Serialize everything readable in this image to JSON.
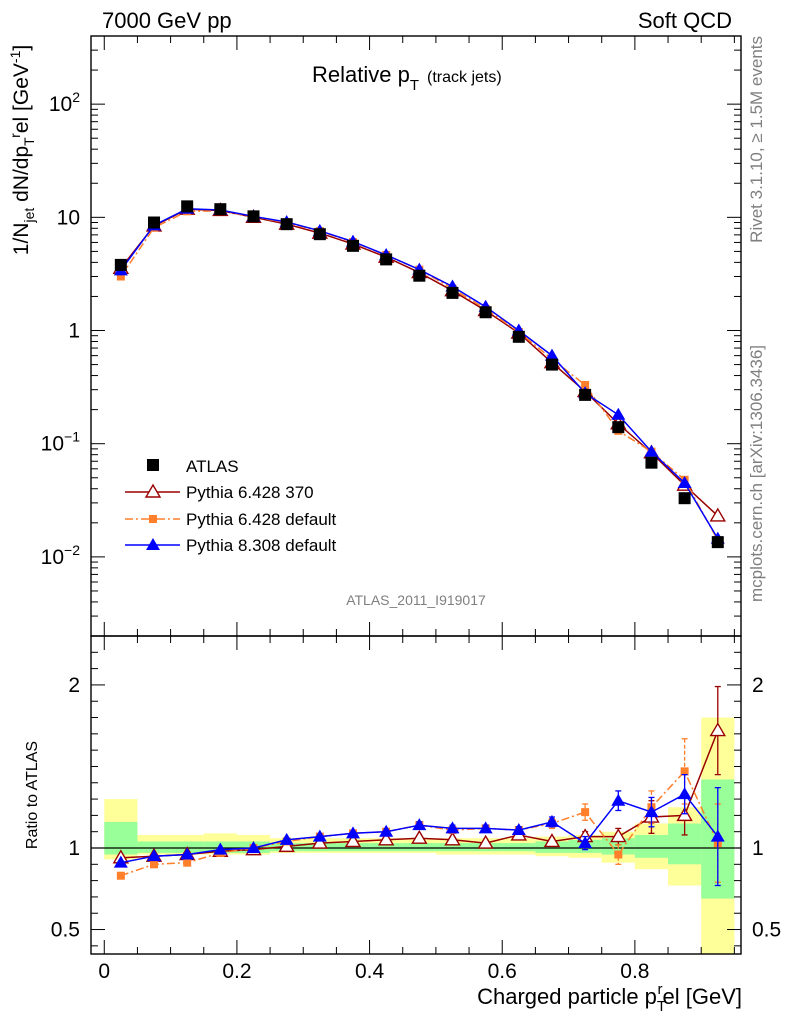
{
  "header": {
    "left": "7000 GeV pp",
    "right": "Soft QCD"
  },
  "side_labels": {
    "top": "Rivet 3.1.10, ≥ 1.5M events",
    "bottom": "mcplots.cern.ch [arXiv:1306.3436]"
  },
  "chart_data": [
    {
      "type": "scatter",
      "title": "Relative p",
      "title_sub": "T",
      "title_suffix": "(track jets)",
      "watermark": "ATLAS_2011_I919017",
      "ylabel": {
        "p1": "1/N",
        "s1": "jet",
        "p2": " dN/dp",
        "s2": "T",
        "sup2": "r",
        "p3": "el [GeV",
        "sup3": "-1",
        "p4": "]"
      },
      "yscale": "log",
      "ylim": [
        0.002,
        400
      ],
      "xlim": [
        -0.02,
        0.96
      ],
      "y_ticks": [
        {
          "value": 0.01,
          "base": "10",
          "exp": "−2",
          "label": ""
        },
        {
          "value": 0.1,
          "base": "10",
          "exp": "−1",
          "label": ""
        },
        {
          "value": 1,
          "base": "",
          "exp": "",
          "label": "1"
        },
        {
          "value": 10,
          "base": "",
          "exp": "",
          "label": "10"
        },
        {
          "value": 100,
          "base": "10",
          "exp": "2",
          "label": ""
        }
      ],
      "x": [
        0.025,
        0.075,
        0.125,
        0.175,
        0.225,
        0.275,
        0.325,
        0.375,
        0.425,
        0.475,
        0.525,
        0.575,
        0.625,
        0.675,
        0.725,
        0.775,
        0.825,
        0.875,
        0.925
      ],
      "series": [
        {
          "name": "ATLAS",
          "color": "#000000",
          "marker": "square",
          "line": "none",
          "values": [
            3.8,
            9.0,
            12.5,
            11.8,
            10.2,
            8.7,
            7.1,
            5.6,
            4.25,
            3.05,
            2.15,
            1.45,
            0.88,
            0.5,
            0.27,
            0.14,
            0.068,
            0.033,
            0.0135
          ]
        },
        {
          "name": "Pythia 6.428 370",
          "color": "#990000",
          "marker": "open-triangle",
          "line": "solid",
          "values": [
            3.55,
            8.4,
            11.8,
            11.5,
            10.0,
            8.7,
            7.25,
            5.8,
            4.45,
            3.25,
            2.25,
            1.5,
            0.95,
            0.52,
            0.29,
            0.15,
            0.083,
            0.043,
            0.023
          ]
        },
        {
          "name": "Pythia 6.428 default",
          "color": "#ff7f2a",
          "marker": "square-small",
          "line": "dashdot",
          "values": [
            3.0,
            8.1,
            11.3,
            11.4,
            10.1,
            8.95,
            7.55,
            6.05,
            4.65,
            3.45,
            2.35,
            1.55,
            0.97,
            0.56,
            0.33,
            0.13,
            0.085,
            0.048,
            0.014
          ]
        },
        {
          "name": "Pythia 8.308 default",
          "color": "#0000ff",
          "marker": "triangle",
          "line": "solid",
          "values": [
            3.4,
            8.5,
            11.9,
            11.6,
            10.2,
            9.1,
            7.6,
            6.1,
            4.65,
            3.45,
            2.45,
            1.62,
            1.0,
            0.6,
            0.28,
            0.18,
            0.085,
            0.045,
            0.0145
          ]
        }
      ]
    },
    {
      "type": "scatter",
      "ylabel": "Ratio to ATLAS",
      "xlabel": "Charged particle p",
      "xlabel_sub": "T",
      "xlabel_sup": "r",
      "xlabel_suffix": "el [GeV]",
      "ylim": [
        0.35,
        2.3
      ],
      "xlim": [
        -0.02,
        0.96
      ],
      "x_ticks": [
        {
          "value": 0,
          "label": "0"
        },
        {
          "value": 0.2,
          "label": "0.2"
        },
        {
          "value": 0.4,
          "label": "0.4"
        },
        {
          "value": 0.6,
          "label": "0.6"
        },
        {
          "value": 0.8,
          "label": "0.8"
        }
      ],
      "y_ticks": [
        {
          "value": 0.5,
          "label": "0.5"
        },
        {
          "value": 1,
          "label": "1"
        },
        {
          "value": 2,
          "label": "2"
        }
      ],
      "reference_line": 1,
      "band_stat": [
        [
          0.96,
          1.16
        ],
        [
          0.97,
          1.04
        ],
        [
          0.97,
          1.04
        ],
        [
          0.97,
          1.04
        ],
        [
          0.97,
          1.04
        ],
        [
          0.98,
          1.03
        ],
        [
          0.98,
          1.03
        ],
        [
          0.98,
          1.03
        ],
        [
          0.98,
          1.03
        ],
        [
          0.98,
          1.03
        ],
        [
          0.98,
          1.03
        ],
        [
          0.98,
          1.03
        ],
        [
          0.98,
          1.03
        ],
        [
          0.97,
          1.04
        ],
        [
          0.97,
          1.05
        ],
        [
          0.96,
          1.06
        ],
        [
          0.94,
          1.08
        ],
        [
          0.9,
          1.15
        ],
        [
          0.69,
          1.42
        ]
      ],
      "band_total": [
        [
          0.93,
          1.3
        ],
        [
          0.96,
          1.08
        ],
        [
          0.96,
          1.08
        ],
        [
          0.96,
          1.09
        ],
        [
          0.96,
          1.08
        ],
        [
          0.97,
          1.06
        ],
        [
          0.97,
          1.06
        ],
        [
          0.97,
          1.06
        ],
        [
          0.97,
          1.06
        ],
        [
          0.97,
          1.06
        ],
        [
          0.96,
          1.06
        ],
        [
          0.96,
          1.06
        ],
        [
          0.96,
          1.06
        ],
        [
          0.95,
          1.07
        ],
        [
          0.94,
          1.08
        ],
        [
          0.91,
          1.1
        ],
        [
          0.87,
          1.15
        ],
        [
          0.77,
          1.25
        ],
        [
          0.35,
          1.8
        ]
      ],
      "series": [
        {
          "name": "Pythia 6.428 370",
          "color": "#990000",
          "marker": "open-triangle",
          "line": "solid",
          "values": [
            0.94,
            0.95,
            0.96,
            0.98,
            0.99,
            1.01,
            1.03,
            1.04,
            1.05,
            1.06,
            1.05,
            1.03,
            1.08,
            1.04,
            1.07,
            1.07,
            1.19,
            1.2,
            1.72
          ],
          "errors": [
            0.01,
            0.01,
            0.01,
            0.01,
            0.01,
            0.01,
            0.01,
            0.01,
            0.01,
            0.01,
            0.01,
            0.01,
            0.02,
            0.02,
            0.03,
            0.05,
            0.1,
            0.12,
            0.27
          ]
        },
        {
          "name": "Pythia 6.428 default",
          "color": "#ff7f2a",
          "marker": "square-small",
          "line": "dashdot",
          "values": [
            0.83,
            0.9,
            0.91,
            0.97,
            1.0,
            1.04,
            1.07,
            1.09,
            1.1,
            1.14,
            1.11,
            1.12,
            1.11,
            1.15,
            1.22,
            0.96,
            1.25,
            1.47,
            1.03
          ],
          "errors": [
            0.01,
            0.01,
            0.01,
            0.01,
            0.01,
            0.01,
            0.01,
            0.01,
            0.01,
            0.02,
            0.02,
            0.02,
            0.02,
            0.03,
            0.05,
            0.06,
            0.1,
            0.2,
            0.24
          ]
        },
        {
          "name": "Pythia 8.308 default",
          "color": "#0000ff",
          "marker": "triangle",
          "line": "solid",
          "values": [
            0.91,
            0.95,
            0.96,
            0.99,
            1.0,
            1.05,
            1.07,
            1.09,
            1.1,
            1.14,
            1.12,
            1.12,
            1.11,
            1.16,
            1.03,
            1.29,
            1.22,
            1.33,
            1.07
          ],
          "errors": [
            0.01,
            0.01,
            0.01,
            0.01,
            0.01,
            0.01,
            0.01,
            0.01,
            0.01,
            0.02,
            0.02,
            0.02,
            0.02,
            0.03,
            0.04,
            0.06,
            0.09,
            0.12,
            0.3
          ]
        }
      ]
    }
  ]
}
